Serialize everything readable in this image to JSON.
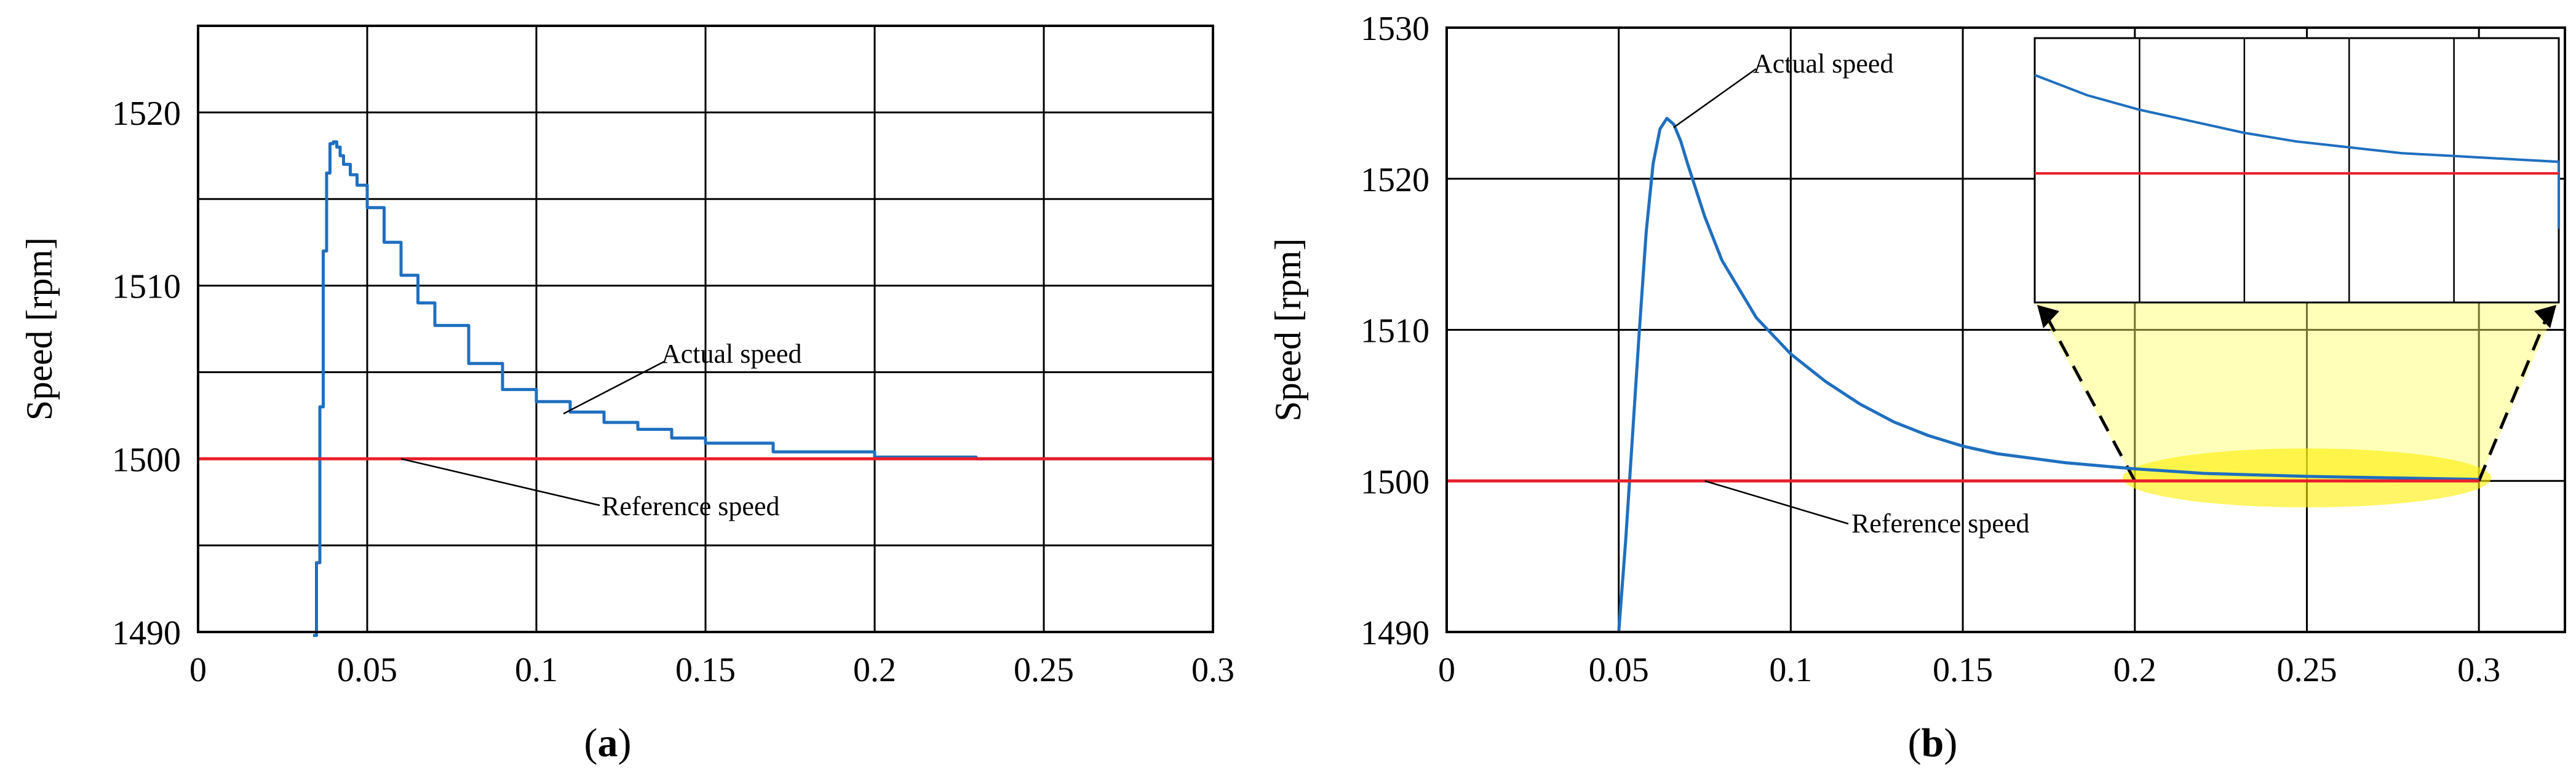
{
  "chart_data": [
    {
      "type": "line",
      "panel_label": "a",
      "ylabel": "Speed [rpm]",
      "xlim": [
        0,
        0.3
      ],
      "ylim": [
        1490,
        1525
      ],
      "x_ticks": [
        0,
        0.05,
        0.1,
        0.15,
        0.2,
        0.25,
        0.3
      ],
      "x_tick_labels": [
        "0",
        "0.05",
        "0.1",
        "0.15",
        "0.2",
        "0.25",
        "0.3"
      ],
      "y_ticks": [
        1490,
        1500,
        1510,
        1520
      ],
      "y_tick_labels": [
        "1490",
        "1500",
        "1510",
        "1520"
      ],
      "y_grid": [
        1490,
        1495,
        1500,
        1505,
        1510,
        1515,
        1520,
        1525
      ],
      "grid": true,
      "series": [
        {
          "name": "Actual speed",
          "color": "#1f6fbf",
          "x": [
            0.034,
            0.035,
            0.036,
            0.037,
            0.038,
            0.039,
            0.04,
            0.041,
            0.042,
            0.043,
            0.045,
            0.047,
            0.05,
            0.055,
            0.06,
            0.065,
            0.07,
            0.08,
            0.09,
            0.1,
            0.11,
            0.12,
            0.13,
            0.14,
            0.15,
            0.17,
            0.2,
            0.23,
            0.26,
            0.3
          ],
          "y": [
            1489.8,
            1494.0,
            1503.0,
            1512.0,
            1516.5,
            1518.2,
            1518.3,
            1518.0,
            1517.5,
            1517.0,
            1516.4,
            1515.8,
            1514.5,
            1512.5,
            1510.6,
            1509.0,
            1507.7,
            1505.5,
            1504.0,
            1503.3,
            1502.7,
            1502.1,
            1501.7,
            1501.2,
            1500.9,
            1500.4,
            1500.1,
            1500.0,
            1500.0,
            1500.0
          ]
        },
        {
          "name": "Reference speed",
          "color": "#e8202a",
          "x": [
            0,
            0.3
          ],
          "y": [
            1500,
            1500
          ]
        }
      ],
      "annotations": [
        "Actual speed",
        "Reference speed"
      ]
    },
    {
      "type": "line",
      "panel_label": "b",
      "ylabel": "Speed [rpm]",
      "xlim": [
        0,
        0.325
      ],
      "ylim": [
        1490,
        1530
      ],
      "x_ticks": [
        0,
        0.05,
        0.1,
        0.15,
        0.2,
        0.25,
        0.3
      ],
      "x_tick_labels": [
        "0",
        "0.05",
        "0.1",
        "0.15",
        "0.2",
        "0.25",
        "0.3"
      ],
      "y_ticks": [
        1490,
        1500,
        1510,
        1520,
        1530
      ],
      "y_tick_labels": [
        "1490",
        "1500",
        "1510",
        "1520",
        "1530"
      ],
      "grid": true,
      "series": [
        {
          "name": "Actual speed",
          "color": "#1f6fbf",
          "x": [
            0.05,
            0.052,
            0.054,
            0.056,
            0.058,
            0.06,
            0.062,
            0.064,
            0.066,
            0.068,
            0.07,
            0.075,
            0.08,
            0.09,
            0.1,
            0.11,
            0.12,
            0.13,
            0.14,
            0.15,
            0.16,
            0.18,
            0.2,
            0.22,
            0.25,
            0.3
          ],
          "y": [
            1490.0,
            1496.0,
            1503.0,
            1510.0,
            1516.5,
            1521.0,
            1523.3,
            1524.0,
            1523.6,
            1522.5,
            1521.0,
            1517.5,
            1514.6,
            1510.8,
            1508.4,
            1506.6,
            1505.1,
            1503.9,
            1503.0,
            1502.3,
            1501.8,
            1501.2,
            1500.8,
            1500.5,
            1500.3,
            1500.1
          ]
        },
        {
          "name": "Reference speed",
          "color": "#e8202a",
          "x": [
            0,
            0.3
          ],
          "y": [
            1500,
            1500
          ]
        }
      ],
      "inset": {
        "x_range": [
          0.2,
          0.3
        ],
        "series_y": [
          1520.2,
          1519.5,
          1519.0,
          1518.6,
          1518.2,
          1517.9,
          1517.7,
          1517.5,
          1517.4,
          1517.3,
          1517.2
        ],
        "reference_y": 1516.8
      },
      "highlight_x_range": [
        0.2,
        0.3
      ],
      "annotations": [
        "Actual speed",
        "Reference speed"
      ]
    }
  ],
  "colors": {
    "actual": "#1f6fbf",
    "reference": "#e8202a",
    "grid": "#000000",
    "highlight": "#ffff66"
  },
  "captions": {
    "a_open": "(",
    "a_letter": "a",
    "a_close": ")",
    "b_open": "(",
    "b_letter": "b",
    "b_close": ")"
  }
}
